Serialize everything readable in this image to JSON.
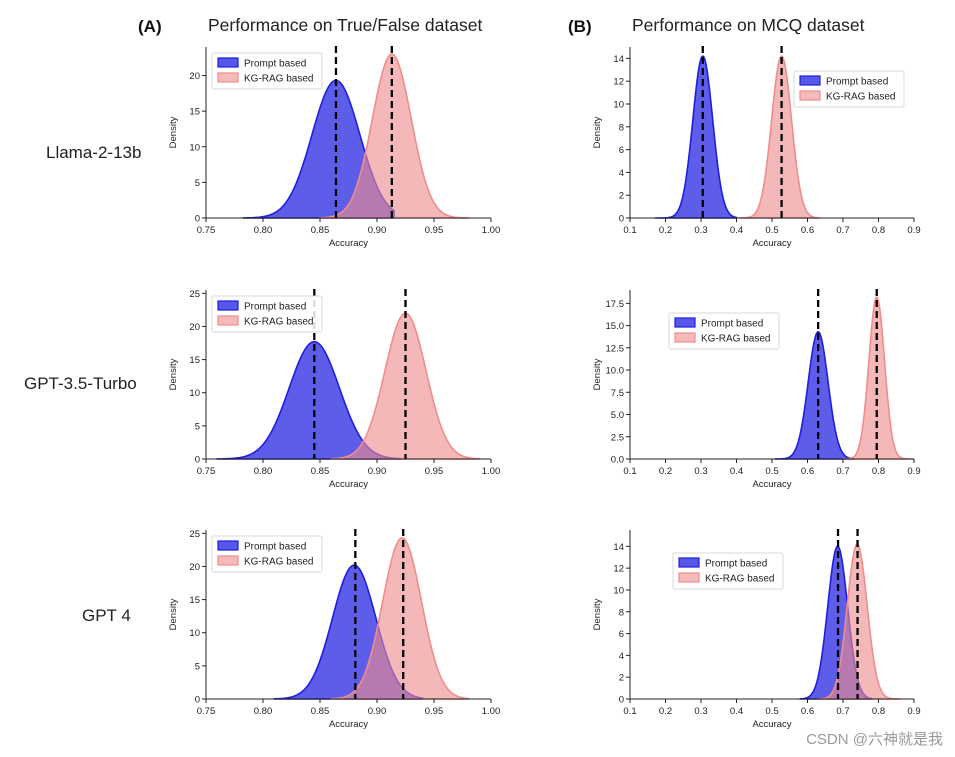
{
  "figure": {
    "panel_a_label": "(A)",
    "panel_a_title": "Performance on True/False dataset",
    "panel_b_label": "(B)",
    "panel_b_title": "Performance on MCQ dataset",
    "row_labels": [
      "Llama-2-13b",
      "GPT-3.5-Turbo",
      "GPT 4"
    ],
    "watermark": "CSDN @六神就是我",
    "colors": {
      "prompt": "#1f1fe0",
      "kg": "#ef8d8d"
    }
  },
  "chart_data": [
    {
      "type": "area",
      "panel": "A",
      "model": "Llama-2-13b",
      "xlabel": "Accuracy",
      "ylabel": "Density",
      "xlim": [
        0.75,
        1.0
      ],
      "ylim": [
        0,
        24
      ],
      "xticks": [
        "0.75",
        "0.80",
        "0.85",
        "0.90",
        "0.95",
        "1.00"
      ],
      "yticks": [
        "0",
        "5",
        "10",
        "15",
        "20"
      ],
      "legend": [
        "Prompt based",
        "KG-RAG based"
      ],
      "legend_position": "top-left",
      "series": [
        {
          "name": "Prompt based",
          "mean": 0.864,
          "peak": 19.3,
          "sd": 0.021,
          "range": [
            0.783,
            0.915
          ]
        },
        {
          "name": "KG-RAG based",
          "mean": 0.913,
          "peak": 23.0,
          "sd": 0.017,
          "range": [
            0.85,
            0.98
          ]
        }
      ],
      "vlines": [
        0.864,
        0.913
      ]
    },
    {
      "type": "area",
      "panel": "B",
      "model": "Llama-2-13b",
      "xlabel": "Accuracy",
      "ylabel": "Density",
      "xlim": [
        0.1,
        0.9
      ],
      "ylim": [
        0,
        15
      ],
      "xticks": [
        "0.1",
        "0.2",
        "0.3",
        "0.4",
        "0.5",
        "0.6",
        "0.7",
        "0.8",
        "0.9"
      ],
      "yticks": [
        "0",
        "2",
        "4",
        "6",
        "8",
        "10",
        "12",
        "14"
      ],
      "legend": [
        "Prompt based",
        "KG-RAG based"
      ],
      "legend_position": "top-right",
      "series": [
        {
          "name": "Prompt based",
          "mean": 0.305,
          "peak": 14.2,
          "sd": 0.028,
          "range": [
            0.17,
            0.4
          ]
        },
        {
          "name": "KG-RAG based",
          "mean": 0.527,
          "peak": 14.2,
          "sd": 0.028,
          "range": [
            0.41,
            0.63
          ]
        }
      ],
      "vlines": [
        0.305,
        0.527
      ]
    },
    {
      "type": "area",
      "panel": "A",
      "model": "GPT-3.5-Turbo",
      "xlabel": "Accuracy",
      "ylabel": "Density",
      "xlim": [
        0.75,
        1.0
      ],
      "ylim": [
        0,
        25.5
      ],
      "xticks": [
        "0.75",
        "0.80",
        "0.85",
        "0.90",
        "0.95",
        "1.00"
      ],
      "yticks": [
        "0",
        "5",
        "10",
        "15",
        "20",
        "25"
      ],
      "legend": [
        "Prompt based",
        "KG-RAG based"
      ],
      "legend_position": "top-left",
      "series": [
        {
          "name": "Prompt based",
          "mean": 0.845,
          "peak": 17.7,
          "sd": 0.022,
          "range": [
            0.76,
            0.92
          ]
        },
        {
          "name": "KG-RAG based",
          "mean": 0.925,
          "peak": 22.0,
          "sd": 0.018,
          "range": [
            0.86,
            0.99
          ]
        }
      ],
      "vlines": [
        0.845,
        0.925
      ]
    },
    {
      "type": "area",
      "panel": "B",
      "model": "GPT-3.5-Turbo",
      "xlabel": "Accuracy",
      "ylabel": "Density",
      "xlim": [
        0.1,
        0.9
      ],
      "ylim": [
        0,
        19
      ],
      "xticks": [
        "0.1",
        "0.2",
        "0.3",
        "0.4",
        "0.5",
        "0.6",
        "0.7",
        "0.8",
        "0.9"
      ],
      "yticks": [
        "0.0",
        "2.5",
        "5.0",
        "7.5",
        "10.0",
        "12.5",
        "15.0",
        "17.5"
      ],
      "legend": [
        "Prompt based",
        "KG-RAG based"
      ],
      "legend_position": "center-left",
      "series": [
        {
          "name": "Prompt based",
          "mean": 0.63,
          "peak": 14.3,
          "sd": 0.028,
          "range": [
            0.51,
            0.73
          ]
        },
        {
          "name": "KG-RAG based",
          "mean": 0.795,
          "peak": 18.2,
          "sd": 0.022,
          "range": [
            0.7,
            0.9
          ]
        }
      ],
      "vlines": [
        0.63,
        0.795
      ]
    },
    {
      "type": "area",
      "panel": "A",
      "model": "GPT 4",
      "xlabel": "Accuracy",
      "ylabel": "Density",
      "xlim": [
        0.75,
        1.0
      ],
      "ylim": [
        0,
        25.5
      ],
      "xticks": [
        "0.75",
        "0.80",
        "0.85",
        "0.90",
        "0.95",
        "1.00"
      ],
      "yticks": [
        "0",
        "5",
        "10",
        "15",
        "20",
        "25"
      ],
      "legend": [
        "Prompt based",
        "KG-RAG based"
      ],
      "legend_position": "top-left",
      "series": [
        {
          "name": "Prompt based",
          "mean": 0.88,
          "peak": 20.2,
          "sd": 0.019,
          "range": [
            0.81,
            0.94
          ]
        },
        {
          "name": "KG-RAG based",
          "mean": 0.922,
          "peak": 24.3,
          "sd": 0.017,
          "range": [
            0.86,
            0.98
          ]
        }
      ],
      "vlines": [
        0.881,
        0.923
      ]
    },
    {
      "type": "area",
      "panel": "B",
      "model": "GPT 4",
      "xlabel": "Accuracy",
      "ylabel": "Density",
      "xlim": [
        0.1,
        0.9
      ],
      "ylim": [
        0,
        15.5
      ],
      "xticks": [
        "0.1",
        "0.2",
        "0.3",
        "0.4",
        "0.5",
        "0.6",
        "0.7",
        "0.8",
        "0.9"
      ],
      "yticks": [
        "0",
        "2",
        "4",
        "6",
        "8",
        "10",
        "12",
        "14"
      ],
      "legend": [
        "Prompt based",
        "KG-RAG based"
      ],
      "legend_position": "center-left",
      "series": [
        {
          "name": "Prompt based",
          "mean": 0.685,
          "peak": 14.0,
          "sd": 0.028,
          "range": [
            0.58,
            0.78
          ]
        },
        {
          "name": "KG-RAG based",
          "mean": 0.74,
          "peak": 14.2,
          "sd": 0.028,
          "range": [
            0.63,
            0.86
          ]
        }
      ],
      "vlines": [
        0.686,
        0.741
      ]
    }
  ]
}
